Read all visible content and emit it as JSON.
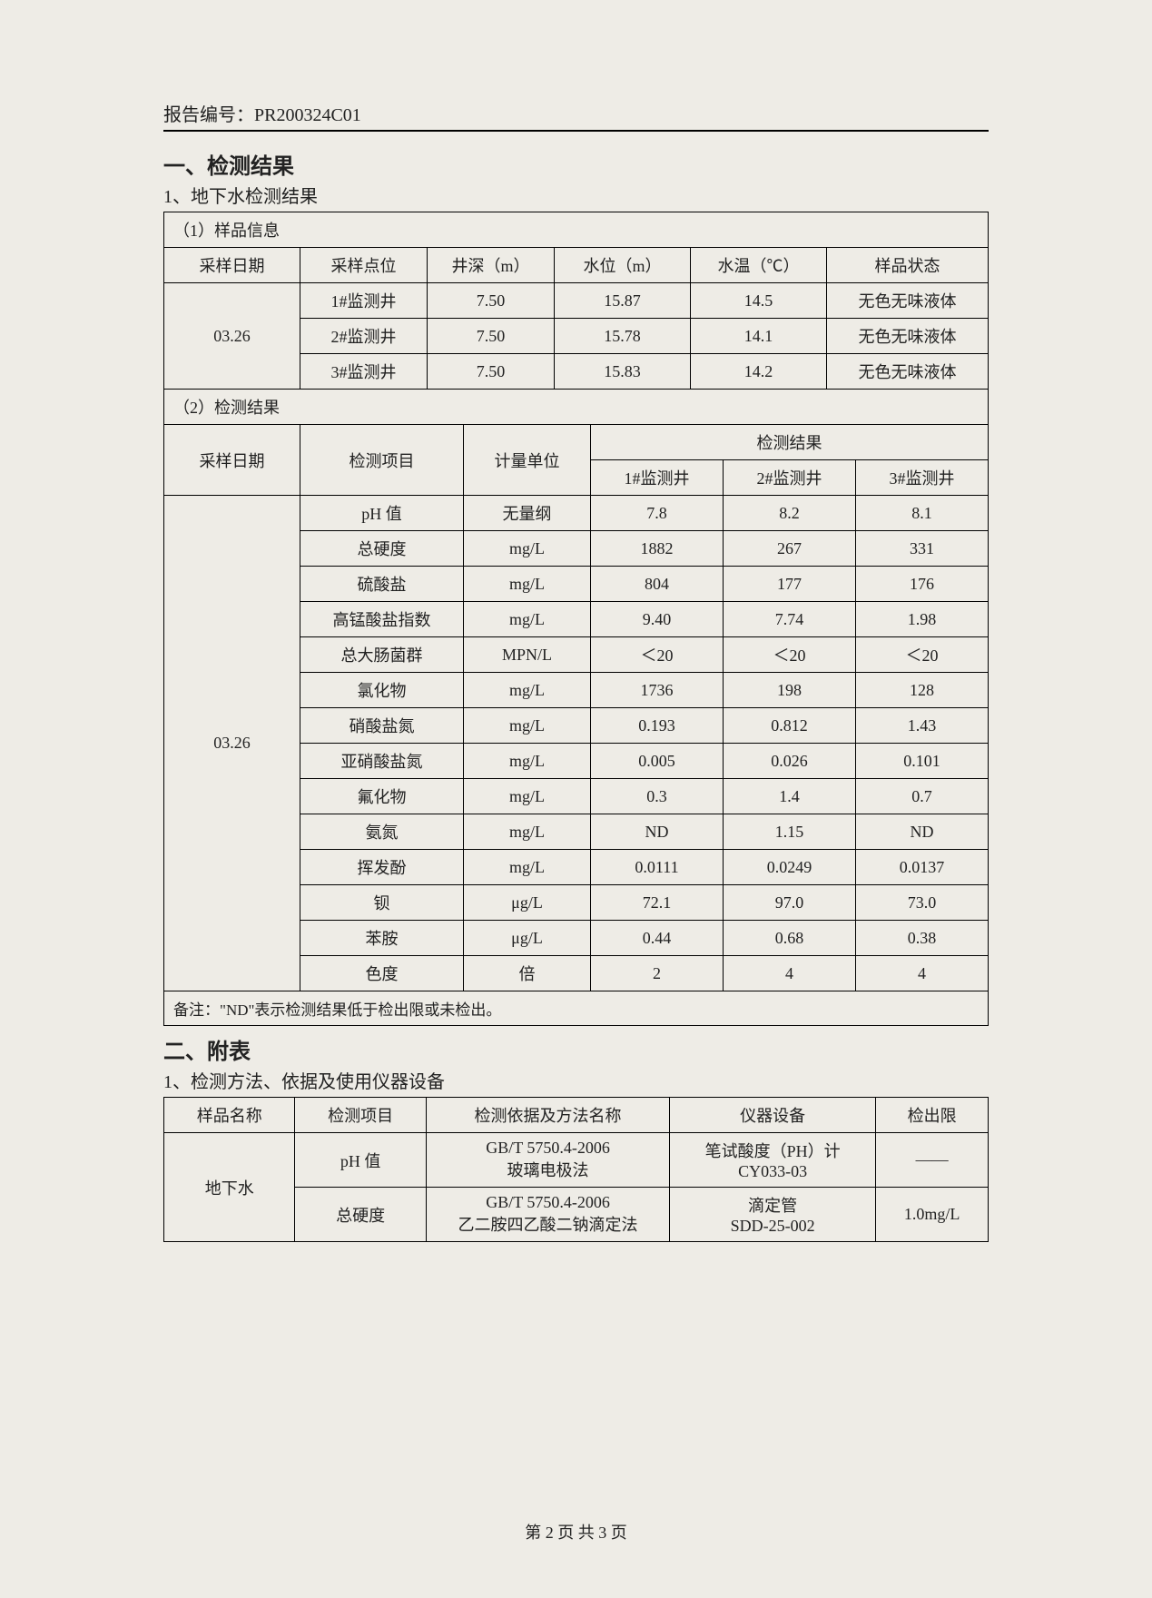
{
  "report_no_label": "报告编号：",
  "report_no_value": "PR200324C01",
  "section1_title": "一、检测结果",
  "section1_sub": "1、地下水检测结果",
  "sample_info_label": "（1）样品信息",
  "sample_info_headers": {
    "date": "采样日期",
    "point": "采样点位",
    "depth": "井深（m）",
    "level": "水位（m）",
    "temp": "水温（℃）",
    "state": "样品状态"
  },
  "sample_date": "03.26",
  "sample_rows": [
    {
      "point": "1#监测井",
      "depth": "7.50",
      "level": "15.87",
      "temp": "14.5",
      "state": "无色无味液体"
    },
    {
      "point": "2#监测井",
      "depth": "7.50",
      "level": "15.78",
      "temp": "14.1",
      "state": "无色无味液体"
    },
    {
      "point": "3#监测井",
      "depth": "7.50",
      "level": "15.83",
      "temp": "14.2",
      "state": "无色无味液体"
    }
  ],
  "results_label": "（2）检测结果",
  "results_headers": {
    "date": "采样日期",
    "item": "检测项目",
    "unit": "计量单位",
    "group": "检测结果",
    "w1": "1#监测井",
    "w2": "2#监测井",
    "w3": "3#监测井"
  },
  "results_date": "03.26",
  "results_rows": [
    {
      "item": "pH 值",
      "unit": "无量纲",
      "w1": "7.8",
      "w2": "8.2",
      "w3": "8.1"
    },
    {
      "item": "总硬度",
      "unit": "mg/L",
      "w1": "1882",
      "w2": "267",
      "w3": "331"
    },
    {
      "item": "硫酸盐",
      "unit": "mg/L",
      "w1": "804",
      "w2": "177",
      "w3": "176"
    },
    {
      "item": "高锰酸盐指数",
      "unit": "mg/L",
      "w1": "9.40",
      "w2": "7.74",
      "w3": "1.98"
    },
    {
      "item": "总大肠菌群",
      "unit": "MPN/L",
      "w1": "＜20",
      "w2": "＜20",
      "w3": "＜20"
    },
    {
      "item": "氯化物",
      "unit": "mg/L",
      "w1": "1736",
      "w2": "198",
      "w3": "128"
    },
    {
      "item": "硝酸盐氮",
      "unit": "mg/L",
      "w1": "0.193",
      "w2": "0.812",
      "w3": "1.43"
    },
    {
      "item": "亚硝酸盐氮",
      "unit": "mg/L",
      "w1": "0.005",
      "w2": "0.026",
      "w3": "0.101"
    },
    {
      "item": "氟化物",
      "unit": "mg/L",
      "w1": "0.3",
      "w2": "1.4",
      "w3": "0.7"
    },
    {
      "item": "氨氮",
      "unit": "mg/L",
      "w1": "ND",
      "w2": "1.15",
      "w3": "ND"
    },
    {
      "item": "挥发酚",
      "unit": "mg/L",
      "w1": "0.0111",
      "w2": "0.0249",
      "w3": "0.0137"
    },
    {
      "item": "钡",
      "unit": "μg/L",
      "w1": "72.1",
      "w2": "97.0",
      "w3": "73.0"
    },
    {
      "item": "苯胺",
      "unit": "μg/L",
      "w1": "0.44",
      "w2": "0.68",
      "w3": "0.38"
    },
    {
      "item": "色度",
      "unit": "倍",
      "w1": "2",
      "w2": "4",
      "w3": "4"
    }
  ],
  "note": "备注：\"ND\"表示检测结果低于检出限或未检出。",
  "section2_title": "二、附表",
  "section2_sub": "1、检测方法、依据及使用仪器设备",
  "appendix_headers": {
    "sample": "样品名称",
    "item": "检测项目",
    "method": "检测依据及方法名称",
    "instrument": "仪器设备",
    "limit": "检出限"
  },
  "appendix_sample": "地下水",
  "appendix_rows": [
    {
      "item": "pH 值",
      "method_line1": "GB/T 5750.4-2006",
      "method_line2": "玻璃电极法",
      "instrument_line1": "笔试酸度（PH）计",
      "instrument_line2": "CY033-03",
      "limit": "——"
    },
    {
      "item": "总硬度",
      "method_line1": "GB/T 5750.4-2006",
      "method_line2": "乙二胺四乙酸二钠滴定法",
      "instrument_line1": "滴定管",
      "instrument_line2": "SDD-25-002",
      "limit": "1.0mg/L"
    }
  ],
  "footer": "第 2 页 共 3 页"
}
